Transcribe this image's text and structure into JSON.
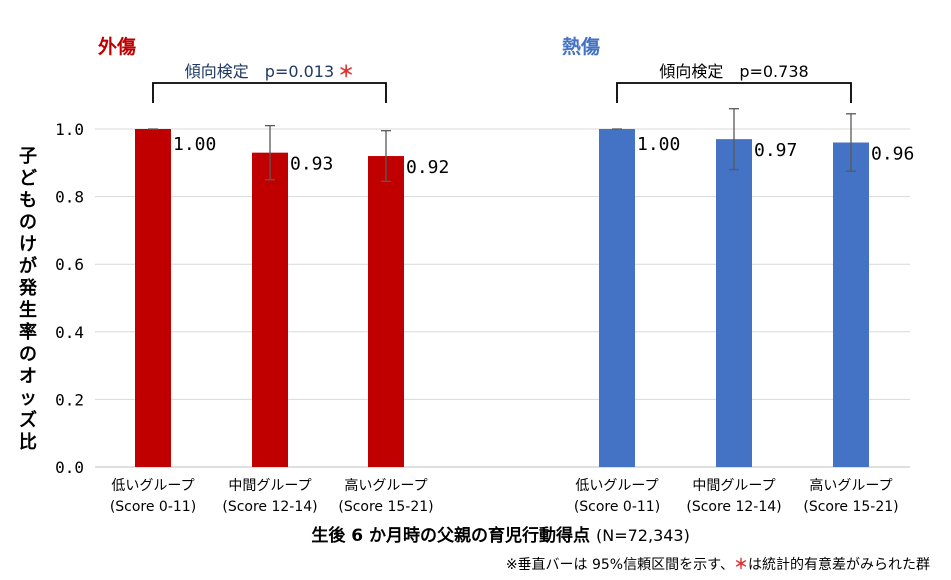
{
  "chart_data": {
    "type": "bar",
    "ylabel": "子どものけが発生率のオッズ比",
    "xlabel": "生後 6 か月時の父親の育児行動得点",
    "xlabel_suffix": "(N=72,343)",
    "footnote_prefix": "※垂直バーは 95%信頼区間を示す、",
    "footnote_star": "＊",
    "footnote_suffix": "は統計的有意差がみられた群",
    "ylim": [
      0,
      1.0
    ],
    "yticks": [
      "0.0",
      "0.2",
      "0.4",
      "0.6",
      "0.8",
      "1.0"
    ],
    "grid": true,
    "categories": [
      {
        "line1": "低いグループ",
        "line2": "(Score 0-11)"
      },
      {
        "line1": "中間グループ",
        "line2": "(Score 12-14)"
      },
      {
        "line1": "高いグループ",
        "line2": "(Score 15-21)"
      }
    ],
    "groups": [
      {
        "name": "外傷",
        "color": "#c00000",
        "values": [
          1.0,
          0.93,
          0.92
        ],
        "value_labels": [
          "1.00",
          "0.93",
          "0.92"
        ],
        "ci_lower": [
          1.0,
          0.85,
          0.845
        ],
        "ci_upper": [
          1.0,
          1.01,
          0.995
        ],
        "trend_label": "傾向検定　p=0.013",
        "trend_star": "＊",
        "trend_color": "#1f3864"
      },
      {
        "name": "熱傷",
        "color": "#4472c4",
        "values": [
          1.0,
          0.97,
          0.96
        ],
        "value_labels": [
          "1.00",
          "0.97",
          "0.96"
        ],
        "ci_lower": [
          1.0,
          0.88,
          0.875
        ],
        "ci_upper": [
          1.0,
          1.06,
          1.045
        ],
        "trend_label": "傾向検定　p=0.738",
        "trend_star": "",
        "trend_color": "#000000"
      }
    ],
    "colors": {
      "star": "#e03030",
      "grid": "#d9d9d9",
      "axis": "#bfbfbf",
      "error": "#595959"
    }
  }
}
